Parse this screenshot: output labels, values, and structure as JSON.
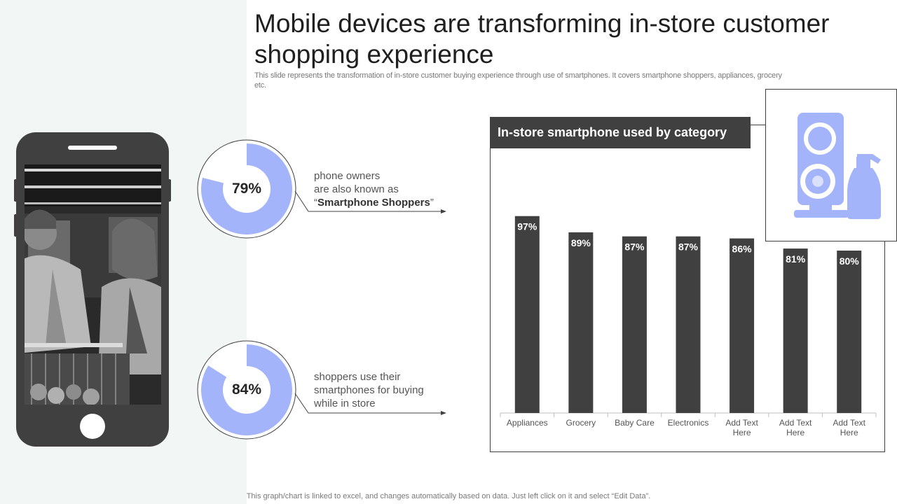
{
  "title": "Mobile devices are transforming in-store customer shopping experience",
  "subtitle": "This slide represents the transformation of in-store customer buying experience through use of smartphones. It covers smartphone shoppers, appliances, grocery etc.",
  "stats": [
    {
      "value": 79,
      "label": "79%",
      "line1": "phone owners",
      "line2": "are also known as",
      "line3_open": "“",
      "line3_bold": "Smartphone Shoppers",
      "line3_close": "”"
    },
    {
      "value": 84,
      "label": "84%",
      "line1": "shoppers use their",
      "line2": "smartphones for buying",
      "line3": "while in store"
    }
  ],
  "chart_data": {
    "type": "bar",
    "title": "In-store smartphone used by category",
    "categories": [
      "Appliances",
      "Grocery",
      "Baby Care",
      "Electronics",
      "Add Text Here",
      "Add Text Here",
      "Add Text Here"
    ],
    "values": [
      97,
      89,
      87,
      87,
      86,
      81,
      80
    ],
    "value_labels": [
      "97%",
      "89%",
      "87%",
      "87%",
      "86%",
      "81%",
      "80%"
    ],
    "ylim": [
      0,
      100
    ],
    "xlabel": "",
    "ylabel": ""
  },
  "footer": "This graph/chart is linked to excel, and changes automatically based on data. Just left click on it and select “Edit Data”.",
  "colors": {
    "accent": "#a3b4fb",
    "dark": "#404040",
    "panel": "#f2f6f4"
  },
  "icons": {
    "phone": "smartphone-icon",
    "appliance": "washing-appliance-icon"
  }
}
